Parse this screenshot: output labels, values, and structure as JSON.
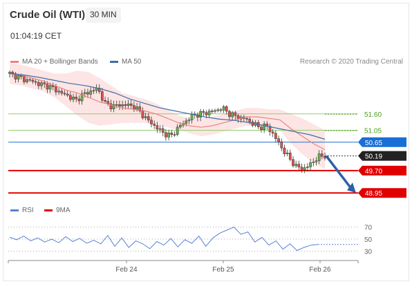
{
  "header": {
    "title": "Crude Oil (WTI)",
    "timeframe": "30 MIN",
    "time": "01:04:19 CET"
  },
  "legend": {
    "ma20": "MA 20 + Bollinger Bands",
    "ma50": "MA 50",
    "credit": "Research © 2020 Trading Central",
    "rsi": "RSI",
    "rsi_ma": "9MA"
  },
  "colors": {
    "ma20": "#f08080",
    "band": "#fde0e0",
    "ma50": "#3d6ea8",
    "rsi": "#5b7fd6",
    "rsi_ma": "#e00000",
    "resistance": "#8fcf6a",
    "resistance_text": "#4a9e1a",
    "pivot": "#1a6fd6",
    "support": "#e00000",
    "candle_up": "#6ab04c",
    "candle_down": "#d9534f"
  },
  "chart_data": [
    {
      "type": "candlestick",
      "ylim": [
        48.7,
        53.1
      ],
      "x_ticks": [
        "Feb 24",
        "Feb 25",
        "Feb 26"
      ],
      "levels": [
        {
          "value": 51.6,
          "label": "51.60",
          "kind": "resistance"
        },
        {
          "value": 51.05,
          "label": "51.05",
          "kind": "resistance"
        },
        {
          "value": 50.65,
          "label": "50.65",
          "kind": "pivot"
        },
        {
          "value": 50.19,
          "label": "50.19",
          "kind": "last"
        },
        {
          "value": 49.7,
          "label": "49.70",
          "kind": "support"
        },
        {
          "value": 48.95,
          "label": "48.95",
          "kind": "support"
        }
      ],
      "price_path": [
        52.95,
        52.85,
        52.75,
        52.7,
        52.6,
        52.55,
        52.45,
        52.3,
        52.2,
        52.05,
        52.25,
        52.35,
        52.45,
        51.95,
        51.85,
        51.9,
        51.9,
        51.85,
        51.6,
        51.35,
        51.15,
        50.95,
        50.85,
        51.15,
        51.35,
        51.55,
        51.6,
        51.65,
        51.7,
        51.8,
        51.6,
        51.5,
        51.45,
        51.3,
        51.15,
        51.2,
        50.9,
        50.5,
        50.15,
        49.85,
        49.75,
        49.9,
        50.15,
        50.2
      ],
      "ma20": [
        52.95,
        52.9,
        52.8,
        52.7,
        52.55,
        52.4,
        52.3,
        52.15,
        52.0,
        51.9,
        51.8,
        51.75,
        51.7,
        51.6,
        51.45,
        51.3,
        51.2,
        51.15,
        51.2,
        51.3,
        51.4,
        51.5,
        51.5,
        51.45,
        51.4,
        51.1,
        50.85,
        50.6,
        50.4
      ],
      "ma50": [
        52.95,
        52.9,
        52.82,
        52.72,
        52.62,
        52.55,
        52.45,
        52.3,
        52.1,
        51.95,
        51.8,
        51.7,
        51.6,
        51.5,
        51.42,
        51.38,
        51.3,
        51.2,
        51.1,
        51.0,
        50.9,
        50.75
      ],
      "rsi": [
        53,
        49,
        55,
        47,
        52,
        45,
        50,
        44,
        54,
        46,
        51,
        43,
        48,
        42,
        56,
        38,
        52,
        36,
        47,
        42,
        34,
        46,
        40,
        51,
        37,
        49,
        43,
        55,
        38,
        52,
        60,
        65,
        70,
        58,
        62,
        45,
        53,
        40,
        47,
        33,
        42,
        31,
        36,
        40,
        41
      ]
    },
    {
      "type": "line",
      "name": "RSI",
      "yticks": [
        "70",
        "50",
        "30"
      ],
      "ylim": [
        20,
        80
      ]
    }
  ]
}
